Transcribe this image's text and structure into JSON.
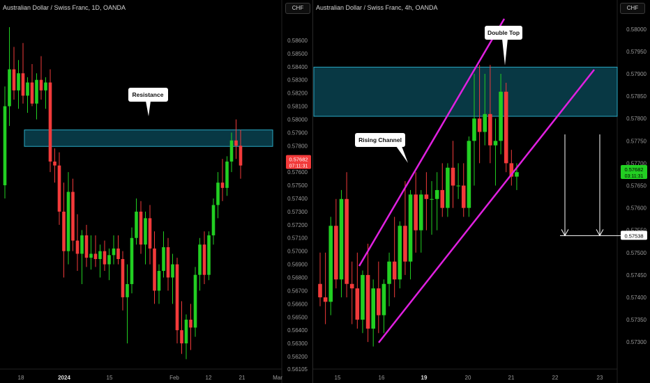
{
  "left": {
    "title": "Australian Dollar / Swiss Franc, 1D, OANDA",
    "currency": "CHF",
    "callout": "Resistance",
    "price_ticks": [
      "0.58600",
      "0.58500",
      "0.58400",
      "0.58300",
      "0.58200",
      "0.58100",
      "0.58000",
      "0.57900",
      "0.57800",
      "0.57700",
      "0.57600",
      "0.57500",
      "0.57400",
      "0.57300",
      "0.57200",
      "0.57100",
      "0.57000",
      "0.56900",
      "0.56800",
      "0.56700",
      "0.56600",
      "0.56500",
      "0.56400",
      "0.56300",
      "0.56200",
      "0.56105"
    ],
    "price_range": [
      0.56105,
      0.587
    ],
    "time_ticks": [
      {
        "label": "18",
        "bold": false
      },
      {
        "label": "2024",
        "bold": true
      },
      {
        "label": "15",
        "bold": false
      },
      {
        "label": "Feb",
        "bold": false
      },
      {
        "label": "12",
        "bold": false
      },
      {
        "label": "21",
        "bold": false
      },
      {
        "label": "Mar",
        "bold": false
      }
    ],
    "current_price": "0.57682",
    "countdown": "07:11:31",
    "colors": {
      "up": "#22cf22",
      "down": "#f23a3a",
      "zone_fill": "#083844",
      "zone_line": "#2aa8c4"
    }
  },
  "right": {
    "title": "Australian Dollar / Swiss Franc, 4h, OANDA",
    "currency": "CHF",
    "callouts": {
      "double_top": "Double Top",
      "rising_channel": "Rising Channel"
    },
    "price_ticks": [
      "0.58000",
      "0.57950",
      "0.57900",
      "0.57850",
      "0.57800",
      "0.57750",
      "0.57700",
      "0.57650",
      "0.57600",
      "0.57550",
      "0.57500",
      "0.57450",
      "0.57400",
      "0.57350",
      "0.57300"
    ],
    "price_range": [
      0.5728,
      0.5802
    ],
    "time_ticks": [
      {
        "label": "15",
        "bold": false
      },
      {
        "label": "16",
        "bold": false
      },
      {
        "label": "19",
        "bold": true
      },
      {
        "label": "20",
        "bold": false
      },
      {
        "label": "21",
        "bold": false
      },
      {
        "label": "22",
        "bold": false
      },
      {
        "label": "23",
        "bold": false
      }
    ],
    "current_price": "0.57682",
    "countdown": "03:11:31",
    "target_price": "0.57538",
    "colors": {
      "up": "#22cf22",
      "down": "#f23a3a",
      "zone_fill": "#083844",
      "zone_line": "#2aa8c4",
      "channel": "#e020e0"
    }
  }
}
